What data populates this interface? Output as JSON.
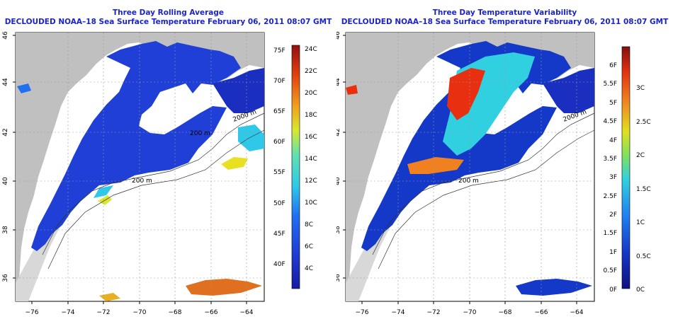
{
  "left": {
    "title_line1": "Three Day Rolling Average",
    "title_line2": "DECLOUDED NOAA–18 Sea Surface Temperature February 06, 2011 08:07 GMT",
    "colorbar": {
      "celsius": [
        "4C",
        "6C",
        "8C",
        "10C",
        "12C",
        "14C",
        "16C",
        "18C",
        "20C",
        "22C",
        "24C"
      ],
      "fahrenheit": [
        "40F",
        "45F",
        "50F",
        "55F",
        "60F",
        "65F",
        "70F",
        "75F"
      ]
    }
  },
  "right": {
    "title_line1": "Three Day Temperature Variability",
    "title_line2": "DECLOUDED NOAA–18 Sea Surface Temperature February 06, 2011 08:07 GMT",
    "colorbar": {
      "celsius": [
        "0C",
        "0.5C",
        "1C",
        "1.5C",
        "2C",
        "2.5C",
        "3C"
      ],
      "fahrenheit": [
        "0F",
        "0.5F",
        "1F",
        "1.5F",
        "2F",
        "2.5F",
        "3F",
        "3.5F",
        "4F",
        "4.5F",
        "5F",
        "5.5F",
        "6F"
      ]
    }
  },
  "map": {
    "lon_ticks": [
      "−76",
      "−74",
      "−72",
      "−70",
      "−68",
      "−66",
      "−64"
    ],
    "lat_ticks": [
      "36",
      "38",
      "40",
      "42",
      "44",
      "46"
    ],
    "isobath_labels": [
      "200 m",
      "2000 m",
      "200 m",
      "200 m"
    ]
  },
  "colors": {
    "title": "#1a24c8",
    "land": "#c0c0c0",
    "ocean": "#ffffff",
    "sst_cold": "#1f3fd6",
    "sst_warm": "#e8601a",
    "var_low": "#1438c8",
    "var_high": "#e83010"
  }
}
